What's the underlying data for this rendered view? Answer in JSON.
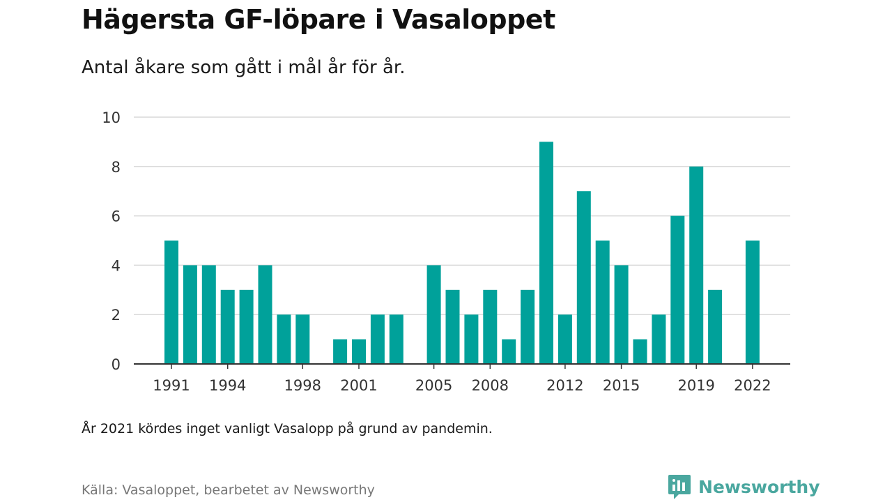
{
  "title": "Hägersta GF-löpare i Vasaloppet",
  "subtitle": "Antal åkare som gått i mål år för år.",
  "note": "År 2021 kördes inget vanligt Vasalopp på grund av pandemin.",
  "source": "Källa: Vasaloppet, bearbetet av Newsworthy",
  "brand": {
    "name": "Newsworthy",
    "icon": "newsworthy-logo-icon",
    "color": "#4aa79f"
  },
  "colors": {
    "bar": "#00a19a",
    "grid": "#d9d9d9",
    "axis": "#333333"
  },
  "chart_data": {
    "type": "bar",
    "categories": [
      1991,
      1992,
      1993,
      1994,
      1995,
      1996,
      1997,
      1998,
      1999,
      2000,
      2001,
      2002,
      2003,
      2004,
      2005,
      2006,
      2007,
      2008,
      2009,
      2010,
      2011,
      2012,
      2013,
      2014,
      2015,
      2016,
      2017,
      2018,
      2019,
      2020,
      2021,
      2022
    ],
    "values": [
      5,
      4,
      4,
      3,
      3,
      4,
      2,
      2,
      0,
      1,
      1,
      2,
      2,
      0,
      4,
      3,
      2,
      3,
      1,
      3,
      9,
      2,
      7,
      5,
      4,
      1,
      2,
      6,
      8,
      3,
      0,
      5
    ],
    "x_tick_labels": [
      "1991",
      "1994",
      "1998",
      "2001",
      "2005",
      "2008",
      "2012",
      "2015",
      "2019",
      "2022"
    ],
    "y_ticks": [
      0,
      2,
      4,
      6,
      8,
      10
    ],
    "ylim": [
      0,
      10
    ],
    "xlabel": "",
    "ylabel": "",
    "grid": true,
    "legend": "none"
  }
}
